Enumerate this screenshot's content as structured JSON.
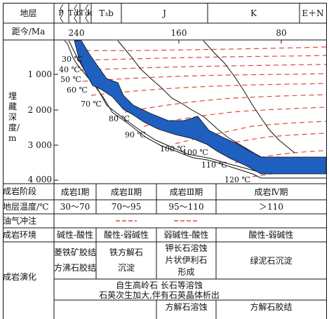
{
  "header": {
    "strata_label": "地层",
    "periods": [
      {
        "id": "P",
        "label": "P"
      },
      {
        "id": "T1b",
        "label": "T₁b"
      },
      {
        "id": "T1k",
        "label": "T₁k"
      },
      {
        "id": "T3b",
        "label": "T₃b"
      },
      {
        "id": "J",
        "label": "J"
      },
      {
        "id": "K",
        "label": "K"
      },
      {
        "id": "EN",
        "label": "E＋N"
      }
    ],
    "age_label": "距今/Ma",
    "age_ticks": [
      "240",
      "160",
      "80"
    ]
  },
  "plot": {
    "y_axis_label": "埋藏深度/m",
    "depth_ticks": [
      "1 000",
      "2 000",
      "3 000",
      "4 000"
    ],
    "isotherms": [
      "30 ℃",
      "40 ℃",
      "50 ℃",
      "60 ℃",
      "70 ℃",
      "80 ℃",
      "90 ℃",
      "100 ℃",
      "100 ℃",
      "110 ℃",
      "120 ℃"
    ]
  },
  "table": {
    "stage_label": "成岩阶段",
    "stages": [
      "成岩Ⅰ期",
      "成岩Ⅱ期",
      "成岩Ⅲ期",
      "成岩Ⅳ期"
    ],
    "temp_label": "地层温度/℃",
    "temps": [
      "30～70",
      "70～95",
      "95～110",
      "＞110"
    ],
    "oil_label": "油气冲注",
    "env_label": "成岩环境",
    "envs": [
      "碱性-酸性",
      "酸性-弱碱性",
      "弱碱性-酸性",
      "酸性-弱碱性"
    ],
    "evo_label": "成岩演化",
    "evo": {
      "s1": [
        "菱铁矿胶结",
        "方沸石胶结"
      ],
      "s2": [
        "铁方解石",
        "沉淀"
      ],
      "s3": [
        "钾长石溶蚀",
        "片状伊利石",
        "形成"
      ],
      "s4": "绿泥石沉淀",
      "wide1": "自生高岭石  长石等溶蚀",
      "wide2": "石英次生加大,伴有石英晶体析出",
      "b3": "方解石溶蚀",
      "b4": "方解石胶结"
    }
  },
  "colors": {
    "layer_fill": "#1f5fbf",
    "isotherm": "#e0483a",
    "charge": "#e0483a",
    "line": "#111111"
  }
}
